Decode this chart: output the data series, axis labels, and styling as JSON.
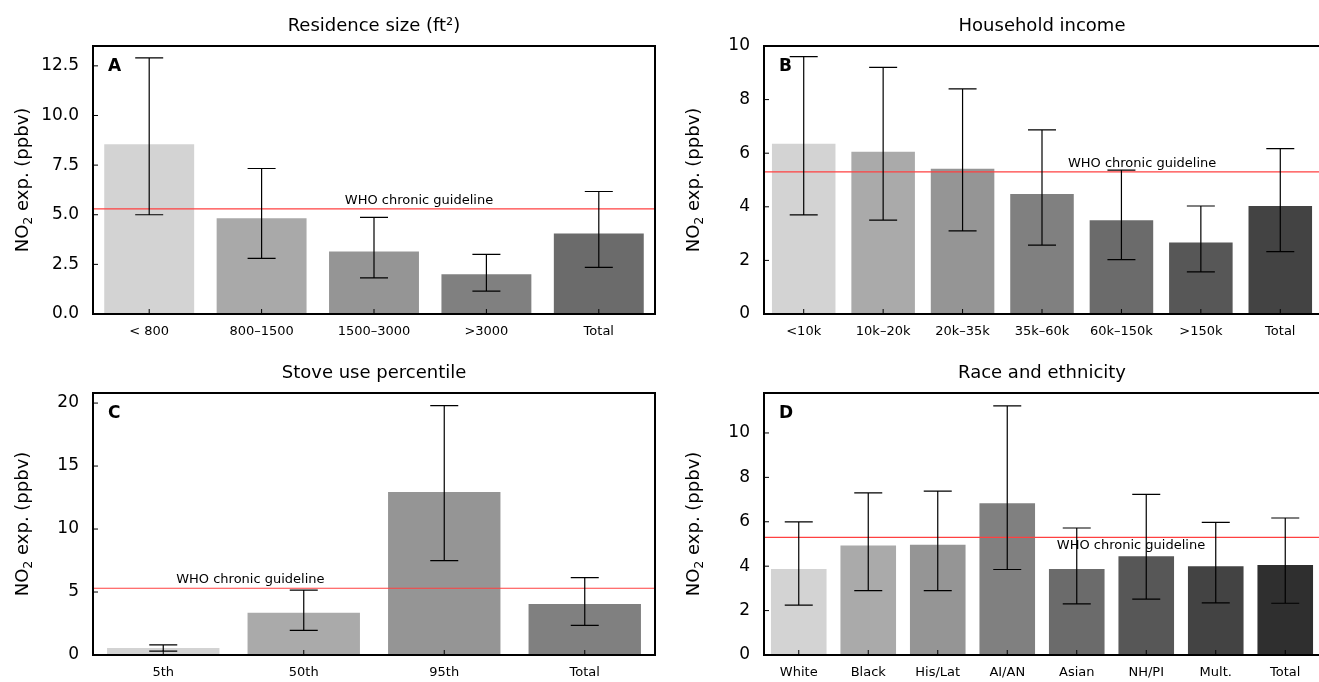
{
  "chart_data": [
    {
      "type": "bar",
      "title": "Residence size (ft²)",
      "ylabel": "NO$_{2}$ exp. (ppbv)",
      "annotations": [
        "A"
      ],
      "categories": [
        "< 800",
        "800–1500",
        "1500–3000",
        ">3000",
        "Total"
      ],
      "values": [
        8.55,
        4.82,
        3.15,
        2.0,
        4.05
      ],
      "errors": [
        [
          5.0,
          12.9
        ],
        [
          2.8,
          7.33
        ],
        [
          1.82,
          4.87
        ],
        [
          1.15,
          3.0
        ],
        [
          2.35,
          6.17
        ]
      ],
      "colors": [
        "#d3d3d3",
        "#a9a9a9",
        "#959595",
        "#808080",
        "#6b6b6b"
      ],
      "ylim": [
        0,
        13.5
      ],
      "yticks": [
        {
          "value": 0,
          "label": "0.0"
        },
        {
          "value": 2.5,
          "label": "2.5"
        },
        {
          "value": 5,
          "label": "5.0"
        },
        {
          "value": 7.5,
          "label": "7.5"
        },
        {
          "value": 10,
          "label": "10.0"
        },
        {
          "value": 12.5,
          "label": "12.5"
        }
      ],
      "ref_lines": [
        {
          "axis": "y",
          "value": 5.3,
          "label": "WHO chronic guideline",
          "color": "#ff4040"
        }
      ]
    },
    {
      "type": "bar",
      "title": "Household income",
      "ylabel": "NO$_{2}$ exp. (ppbv)",
      "annotations": [
        "B"
      ],
      "categories": [
        "<10k",
        "10k–20k",
        "20k–35k",
        "35k–60k",
        "60k–150k",
        ">150k",
        "Total"
      ],
      "values": [
        6.35,
        6.05,
        5.42,
        4.48,
        3.5,
        2.67,
        4.03
      ],
      "errors": [
        [
          3.7,
          9.6
        ],
        [
          3.5,
          9.2
        ],
        [
          3.1,
          8.4
        ],
        [
          2.57,
          6.87
        ],
        [
          2.03,
          5.37
        ],
        [
          1.57,
          4.03
        ],
        [
          2.33,
          6.17
        ]
      ],
      "colors": [
        "#d3d3d3",
        "#aaaaaa",
        "#959595",
        "#808080",
        "#6b6b6b",
        "#575757",
        "#434343"
      ],
      "ylim": [
        0,
        10
      ],
      "yticks": [
        0,
        2,
        4,
        6,
        8,
        10
      ],
      "ref_lines": [
        {
          "axis": "y",
          "value": 5.3,
          "label": "WHO chronic guideline",
          "color": "#ff4040"
        }
      ]
    },
    {
      "type": "bar",
      "title": "Stove use percentile",
      "ylabel": "NO$_{2}$ exp. (ppbv)",
      "annotations": [
        "C"
      ],
      "categories": [
        "5th",
        "50th",
        "95th",
        "Total"
      ],
      "values": [
        0.55,
        3.35,
        12.95,
        4.05
      ],
      "errors": [
        [
          0.3,
          0.8
        ],
        [
          1.95,
          5.15
        ],
        [
          7.5,
          19.8
        ],
        [
          2.35,
          6.15
        ]
      ],
      "colors": [
        "#d3d3d3",
        "#aaaaaa",
        "#959595",
        "#808080"
      ],
      "ylim": [
        0,
        20.8
      ],
      "yticks": [
        0,
        5,
        10,
        15,
        20
      ],
      "ref_lines": [
        {
          "axis": "y",
          "value": 5.3,
          "label": "WHO chronic guideline",
          "color": "#ff4040"
        }
      ]
    },
    {
      "type": "bar",
      "title": "Race and ethnicity",
      "ylabel": "NO$_{2}$ exp. (ppbv)",
      "annotations": [
        "D"
      ],
      "categories": [
        "White",
        "Black",
        "His/Lat",
        "AI/AN",
        "Asian",
        "NH/PI",
        "Mult.",
        "Total"
      ],
      "values": [
        3.87,
        4.93,
        4.97,
        6.83,
        3.87,
        4.45,
        4.0,
        4.05
      ],
      "errors": [
        [
          2.25,
          6.0
        ],
        [
          2.9,
          7.3
        ],
        [
          2.9,
          7.38
        ],
        [
          3.85,
          11.22
        ],
        [
          2.3,
          5.72
        ],
        [
          2.52,
          7.23
        ],
        [
          2.35,
          5.97
        ],
        [
          2.33,
          6.17
        ]
      ],
      "colors": [
        "#d3d3d3",
        "#aaaaaa",
        "#959595",
        "#808080",
        "#6b6b6b",
        "#575757",
        "#434343",
        "#2f2f2f"
      ],
      "ylim": [
        0,
        11.8
      ],
      "yticks": [
        0,
        2,
        4,
        6,
        8,
        10
      ],
      "ref_lines": [
        {
          "axis": "y",
          "value": 5.3,
          "label": "WHO chronic guideline",
          "color": "#ff4040"
        }
      ]
    }
  ]
}
